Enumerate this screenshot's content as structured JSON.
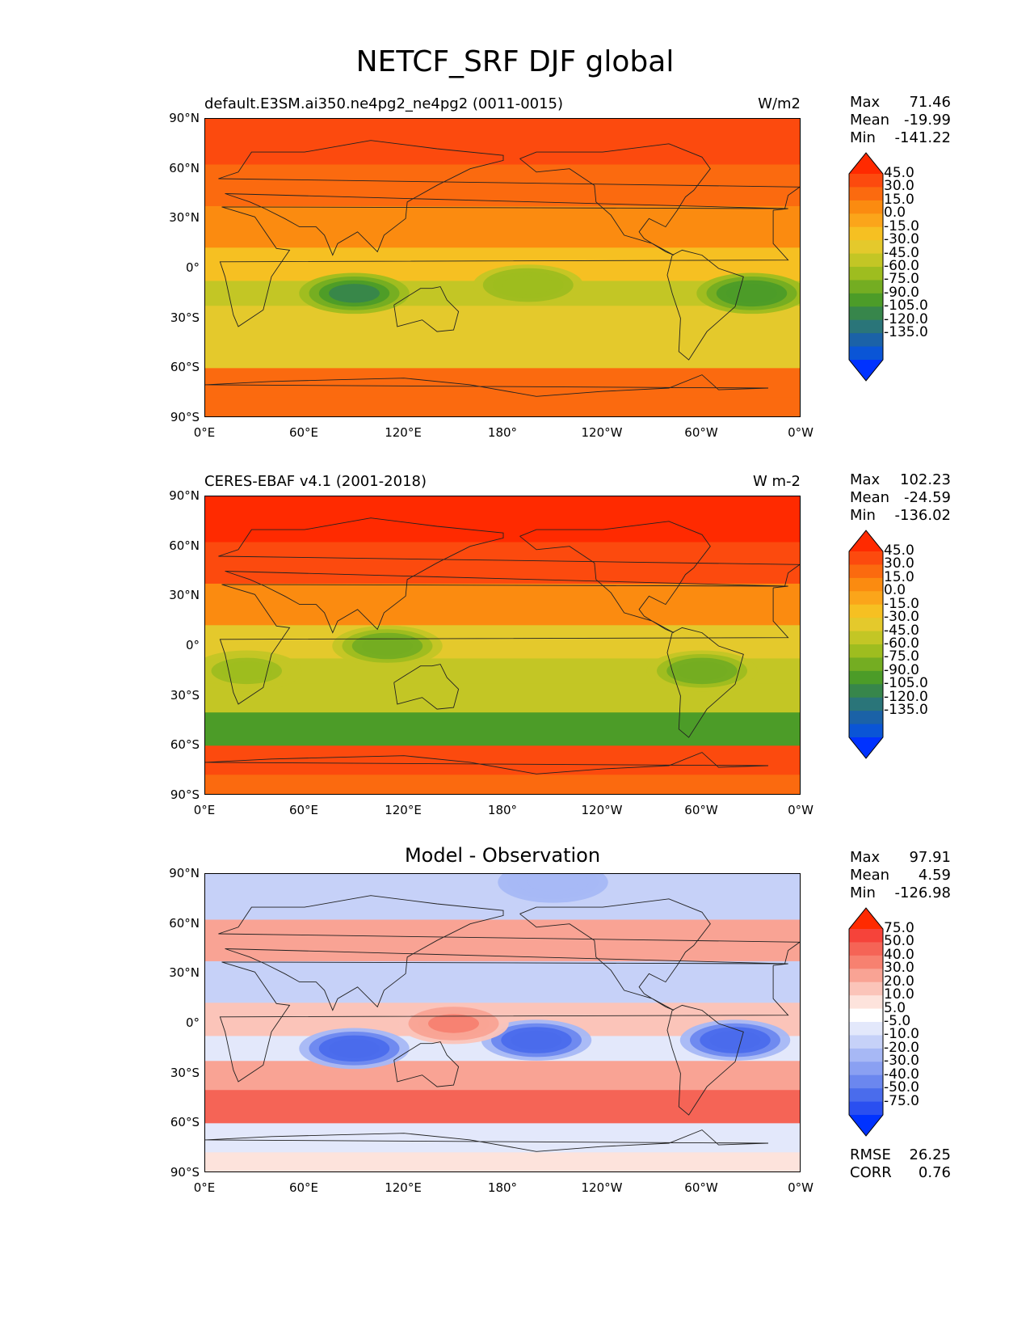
{
  "title": "NETCF_SRF DJF global",
  "yticks": [
    "90°N",
    "60°N",
    "30°N",
    "0°",
    "30°S",
    "60°S",
    "90°S"
  ],
  "xticks": [
    "0°E",
    "60°E",
    "120°E",
    "180°",
    "120°W",
    "60°W",
    "0°W"
  ],
  "panels": [
    {
      "name": "model",
      "subtitle_left": "default.E3SM.ai350.ne4pg2_ne4pg2 (0011-0015)",
      "subtitle_right": "W/m2",
      "subtitle_center": "",
      "stats": [
        {
          "k": "Max",
          "v": "71.46"
        },
        {
          "k": "Mean",
          "v": "-19.99"
        },
        {
          "k": "Min",
          "v": "-141.22"
        }
      ],
      "colorbar": {
        "labels": [
          "45.0",
          "30.0",
          "15.0",
          "0.0",
          "-15.0",
          "-30.0",
          "-45.0",
          "-60.0",
          "-75.0",
          "-90.0",
          "-105.0",
          "-120.0",
          "-135.0"
        ],
        "colors": [
          "#ff2a00",
          "#fc4a0e",
          "#fb6a0f",
          "#fb8b10",
          "#fba51a",
          "#f6c022",
          "#e4c92c",
          "#c3c625",
          "#9ebd1f",
          "#74ad22",
          "#4c9c28",
          "#37864b",
          "#2a7579",
          "#1b62a7",
          "#0a55d6",
          "#0032ff"
        ]
      },
      "extra": []
    },
    {
      "name": "obs",
      "subtitle_left": "CERES-EBAF v4.1 (2001-2018)",
      "subtitle_right": "W m-2",
      "subtitle_center": "",
      "stats": [
        {
          "k": "Max",
          "v": "102.23"
        },
        {
          "k": "Mean",
          "v": "-24.59"
        },
        {
          "k": "Min",
          "v": "-136.02"
        }
      ],
      "colorbar": {
        "labels": [
          "45.0",
          "30.0",
          "15.0",
          "0.0",
          "-15.0",
          "-30.0",
          "-45.0",
          "-60.0",
          "-75.0",
          "-90.0",
          "-105.0",
          "-120.0",
          "-135.0"
        ],
        "colors": [
          "#ff2a00",
          "#fc4a0e",
          "#fb6a0f",
          "#fb8b10",
          "#fba51a",
          "#f6c022",
          "#e4c92c",
          "#c3c625",
          "#9ebd1f",
          "#74ad22",
          "#4c9c28",
          "#37864b",
          "#2a7579",
          "#1b62a7",
          "#0a55d6",
          "#0032ff"
        ]
      },
      "extra": []
    },
    {
      "name": "diff",
      "subtitle_left": "",
      "subtitle_right": "",
      "subtitle_center": "Model - Observation",
      "stats": [
        {
          "k": "Max",
          "v": "97.91"
        },
        {
          "k": "Mean",
          "v": "4.59"
        },
        {
          "k": "Min",
          "v": "-126.98"
        }
      ],
      "colorbar": {
        "labels": [
          "75.0",
          "50.0",
          "40.0",
          "30.0",
          "20.0",
          "10.0",
          "5.0",
          "-5.0",
          "-10.0",
          "-20.0",
          "-30.0",
          "-40.0",
          "-50.0",
          "-75.0"
        ],
        "colors": [
          "#ff2a00",
          "#f6433a",
          "#f56456",
          "#f78170",
          "#f9a394",
          "#fbc4b9",
          "#fde3dc",
          "#ffffff",
          "#e3e8fb",
          "#c6d1f8",
          "#a7b8f5",
          "#8aa0f2",
          "#6b87ef",
          "#4a6cec",
          "#2a4ff0",
          "#0032ff"
        ]
      },
      "extra": [
        {
          "k": "RMSE",
          "v": "26.25"
        },
        {
          "k": "CORR",
          "v": "0.76"
        }
      ]
    }
  ],
  "chart_data": [
    {
      "type": "heatmap",
      "title": "default.E3SM.ai350.ne4pg2_ne4pg2 (0011-0015)",
      "units": "W/m2",
      "x": [
        "0°E",
        "60°E",
        "120°E",
        "180°",
        "120°W",
        "60°W",
        "0°W"
      ],
      "y": [
        "90°N",
        "60°N",
        "30°N",
        "0°",
        "30°S",
        "60°S",
        "90°S"
      ],
      "lat": [
        75,
        50,
        25,
        0,
        -15,
        -30,
        -50,
        -70,
        -85
      ],
      "zonal_values": [
        40,
        25,
        0,
        -30,
        -55,
        -45,
        -45,
        15,
        25
      ],
      "regions": [
        {
          "lon": 90,
          "lat": -15,
          "value": -115
        },
        {
          "lon": 195,
          "lat": -10,
          "value": -75
        },
        {
          "lon": 330,
          "lat": -15,
          "value": -105
        }
      ],
      "stats": {
        "max": 71.46,
        "mean": -19.99,
        "min": -141.22
      }
    },
    {
      "type": "heatmap",
      "title": "CERES-EBAF v4.1 (2001-2018)",
      "units": "W m-2",
      "x": [
        "0°E",
        "60°E",
        "120°E",
        "180°",
        "120°W",
        "60°W",
        "0°W"
      ],
      "y": [
        "90°N",
        "60°N",
        "30°N",
        "0°",
        "30°S",
        "60°S",
        "90°S"
      ],
      "lat": [
        75,
        50,
        25,
        0,
        -15,
        -30,
        -50,
        -70,
        -85
      ],
      "zonal_values": [
        45,
        30,
        0,
        -40,
        -50,
        -60,
        -95,
        30,
        20
      ],
      "regions": [
        {
          "lon": 300,
          "lat": -15,
          "value": -90
        },
        {
          "lon": 25,
          "lat": -15,
          "value": -70
        },
        {
          "lon": 110,
          "lat": 0,
          "value": -90
        }
      ],
      "stats": {
        "max": 102.23,
        "mean": -24.59,
        "min": -136.02
      }
    },
    {
      "type": "heatmap",
      "title": "Model - Observation",
      "units": "",
      "x": [
        "0°E",
        "60°E",
        "120°E",
        "180°",
        "120°W",
        "60°W",
        "0°W"
      ],
      "y": [
        "90°N",
        "60°N",
        "30°N",
        "0°",
        "30°S",
        "60°S",
        "90°S"
      ],
      "lat": [
        75,
        50,
        25,
        0,
        -15,
        -30,
        -50,
        -70,
        -85
      ],
      "zonal_values": [
        -20,
        20,
        -15,
        10,
        -10,
        20,
        40,
        -10,
        5
      ],
      "regions": [
        {
          "lon": 90,
          "lat": -15,
          "value": -75
        },
        {
          "lon": 200,
          "lat": -10,
          "value": -75
        },
        {
          "lon": 320,
          "lat": -10,
          "value": -75
        },
        {
          "lon": 150,
          "lat": 0,
          "value": 30
        },
        {
          "lon": 210,
          "lat": 85,
          "value": -30
        }
      ],
      "stats": {
        "max": 97.91,
        "mean": 4.59,
        "min": -126.98,
        "rmse": 26.25,
        "corr": 0.76
      }
    }
  ]
}
